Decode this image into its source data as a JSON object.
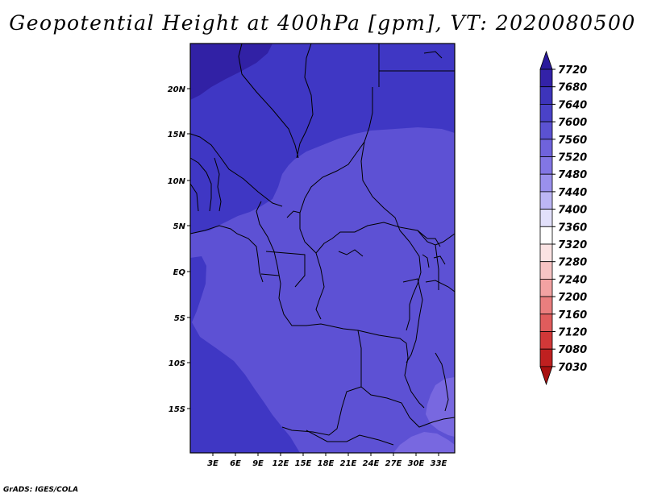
{
  "title": "Geopotential Height at 400hPa [gpm], VT: 2020080500",
  "credit": "GrADS: IGES/COLA",
  "map": {
    "lon_labels": [
      "3E",
      "6E",
      "9E",
      "12E",
      "15E",
      "18E",
      "21E",
      "24E",
      "27E",
      "30E",
      "33E"
    ],
    "lat_labels": [
      "20N",
      "15N",
      "10N",
      "5N",
      "EQ",
      "5S",
      "10S",
      "15S"
    ]
  },
  "colorbar": {
    "levels": [
      "7720",
      "7680",
      "7640",
      "7600",
      "7560",
      "7520",
      "7480",
      "7440",
      "7400",
      "7360",
      "7320",
      "7280",
      "7240",
      "7200",
      "7160",
      "7120",
      "7080",
      "7030"
    ],
    "colors": [
      "#2a1a9c",
      "#3322a8",
      "#3d34bb",
      "#4a42c8",
      "#5b52d2",
      "#6f63dc",
      "#8276e4",
      "#9a90ec",
      "#bcb6f4",
      "#e2e0fa",
      "#ffffff",
      "#fbe3e3",
      "#f7c4c4",
      "#f2a2a2",
      "#ea7e7e",
      "#e05c5c",
      "#d23838",
      "#bf2020",
      "#a81010"
    ]
  },
  "regions": {
    "deep_purple": "#3121a5",
    "dark_blue": "#3f37c4",
    "mid_blue": "#5d51d4",
    "light_blue": "#7868e0"
  }
}
